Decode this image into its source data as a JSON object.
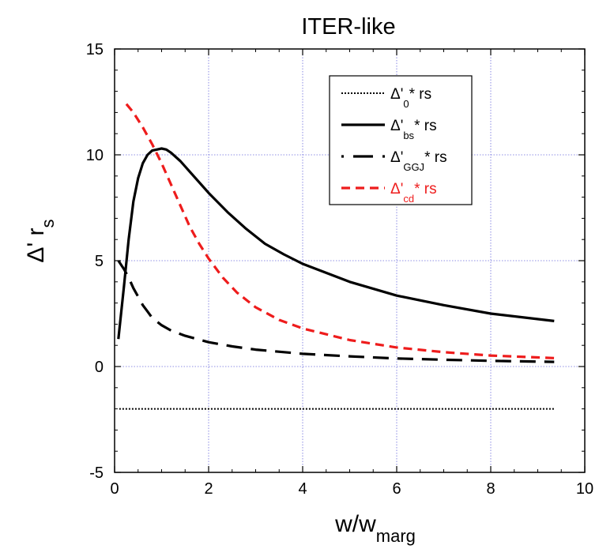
{
  "chart_data": {
    "type": "line",
    "title": "ITER-like",
    "xlabel": {
      "main": "w/w",
      "sub": "marg"
    },
    "ylabel": {
      "main": "Δ'",
      "gap": " ",
      "letter": "r",
      "sub": "s"
    },
    "xlim": [
      0,
      10
    ],
    "ylim": [
      -5,
      15
    ],
    "x_ticks": [
      0,
      2,
      4,
      6,
      8,
      10
    ],
    "y_ticks": [
      -5,
      0,
      5,
      10,
      15
    ],
    "x_tick_labels": [
      "0",
      "2",
      "4",
      "6",
      "8",
      "10"
    ],
    "y_tick_labels": [
      "-5",
      "0",
      "5",
      "10",
      "15"
    ],
    "grid": true,
    "legend_position": "top-right",
    "series": [
      {
        "name": "Δ'0* rs",
        "legend_parts": {
          "pre": "Δ'",
          "sub": "0",
          "post": "* rs"
        },
        "color": "#000000",
        "style": "dotted",
        "x": [
          0.1,
          9.35
        ],
        "y": [
          -2.0,
          -2.0
        ]
      },
      {
        "name": "Δ'bs* rs",
        "legend_parts": {
          "pre": "Δ'",
          "sub": "bs",
          "post": "* rs"
        },
        "color": "#000000",
        "style": "solid",
        "x": [
          0.08,
          0.2,
          0.3,
          0.4,
          0.5,
          0.6,
          0.7,
          0.8,
          0.9,
          1.0,
          1.1,
          1.2,
          1.4,
          1.6,
          1.8,
          2.0,
          2.4,
          2.8,
          3.2,
          3.6,
          4.0,
          5.0,
          6.0,
          7.0,
          8.0,
          9.35
        ],
        "y": [
          1.3,
          3.8,
          6.0,
          7.8,
          8.9,
          9.6,
          10.0,
          10.2,
          10.25,
          10.3,
          10.25,
          10.1,
          9.7,
          9.2,
          8.7,
          8.2,
          7.3,
          6.5,
          5.8,
          5.3,
          4.85,
          4.0,
          3.35,
          2.9,
          2.5,
          2.15
        ]
      },
      {
        "name": "Δ'GGJ* rs",
        "legend_parts": {
          "pre": "Δ'",
          "sub": "GGJ",
          "post": "* rs"
        },
        "color": "#000000",
        "style": "long-dash",
        "x": [
          0.08,
          0.2,
          0.3,
          0.4,
          0.5,
          0.6,
          0.7,
          0.8,
          1.0,
          1.2,
          1.5,
          2.0,
          2.5,
          3.0,
          4.0,
          5.0,
          6.0,
          7.0,
          8.0,
          9.35
        ],
        "y": [
          5.0,
          4.6,
          4.2,
          3.7,
          3.3,
          2.9,
          2.6,
          2.3,
          1.95,
          1.7,
          1.45,
          1.15,
          0.95,
          0.8,
          0.6,
          0.48,
          0.38,
          0.32,
          0.27,
          0.22
        ]
      },
      {
        "name": "Δ'cd* rs",
        "legend_parts": {
          "pre": "Δ'",
          "sub": "cd",
          "post": "* rs"
        },
        "color": "#ee1c1c",
        "style": "dashed",
        "x": [
          0.25,
          0.4,
          0.6,
          0.8,
          1.0,
          1.2,
          1.4,
          1.6,
          1.8,
          2.0,
          2.3,
          2.6,
          3.0,
          3.5,
          4.0,
          5.0,
          6.0,
          7.0,
          8.0,
          9.35
        ],
        "y": [
          12.4,
          12.0,
          11.3,
          10.5,
          9.6,
          8.6,
          7.6,
          6.6,
          5.8,
          5.1,
          4.2,
          3.5,
          2.8,
          2.2,
          1.8,
          1.25,
          0.9,
          0.68,
          0.52,
          0.4
        ]
      }
    ]
  }
}
